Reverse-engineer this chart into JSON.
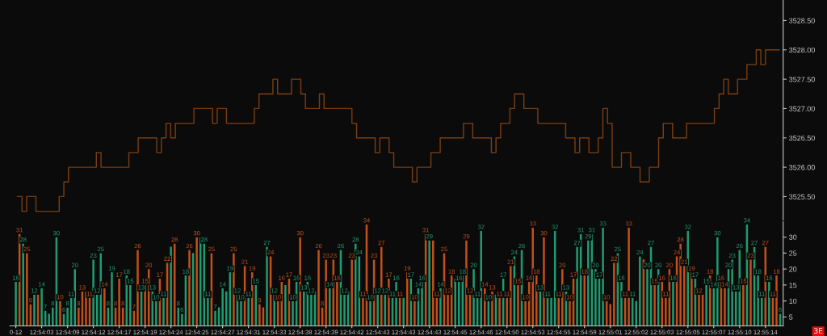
{
  "chart_data": [
    {
      "type": "step",
      "tick_labels": "y",
      "marker": "none",
      "line_style": "solid",
      "categories": [
        null,
        null,
        null,
        null,
        null,
        null,
        null,
        null,
        null,
        null,
        null,
        null,
        null,
        null,
        null,
        null,
        null,
        null,
        null,
        null,
        null,
        null,
        null,
        null,
        null,
        null,
        null,
        null,
        null,
        null,
        null,
        null,
        null,
        null,
        null,
        null,
        null,
        null,
        null,
        null,
        null,
        null,
        null,
        null,
        null,
        null,
        null,
        null,
        null,
        null,
        null,
        null,
        null,
        null,
        null,
        null,
        null,
        null,
        null,
        null,
        null,
        null,
        null,
        null,
        null,
        null,
        null,
        null,
        null,
        null,
        null,
        null,
        null,
        null,
        null,
        null,
        null,
        null,
        null,
        null,
        null,
        null,
        null,
        null,
        null,
        null,
        null,
        null,
        null,
        null,
        null,
        null,
        null,
        null,
        null,
        null,
        null,
        null,
        null,
        null,
        null,
        null,
        null,
        null,
        null,
        null,
        null,
        null,
        null,
        null,
        null,
        null,
        null,
        null,
        null,
        null,
        null,
        null,
        null,
        null,
        null,
        null,
        null,
        null,
        null,
        null,
        null,
        null,
        null,
        null,
        null,
        null,
        null,
        null,
        null,
        null,
        null,
        null,
        null,
        null,
        null,
        null,
        null,
        null,
        null,
        null,
        null,
        null,
        null,
        null,
        null,
        null,
        null,
        null,
        null,
        null,
        null,
        null,
        null,
        null,
        null,
        null,
        null,
        null,
        null
      ],
      "series": [
        {
          "color": "#7a3f12",
          "values": [
            3525.5,
            3525.25,
            3525.5,
            3525.5,
            3525.25,
            3525.25,
            3525.25,
            3525.25,
            3525.25,
            3525.5,
            3525.75,
            3526.0,
            3526.0,
            3526.0,
            3526.0,
            3526.0,
            3526.0,
            3526.25,
            3526.0,
            3526.0,
            3526.0,
            3526.0,
            3526.0,
            3526.0,
            3526.25,
            3526.25,
            3526.5,
            3526.5,
            3526.5,
            3526.5,
            3526.25,
            3526.5,
            3526.75,
            3526.5,
            3526.75,
            3526.75,
            3526.75,
            3526.75,
            3527.0,
            3527.0,
            3527.0,
            3527.0,
            3526.75,
            3527.0,
            3527.0,
            3526.75,
            3526.75,
            3526.75,
            3526.75,
            3526.75,
            3526.75,
            3527.0,
            3527.25,
            3527.25,
            3527.25,
            3527.5,
            3527.25,
            3527.25,
            3527.25,
            3527.5,
            3527.5,
            3527.25,
            3527.0,
            3527.0,
            3527.0,
            3527.25,
            3527.0,
            3527.0,
            3527.0,
            3527.0,
            3527.0,
            3527.0,
            3526.75,
            3526.5,
            3526.5,
            3526.5,
            3526.5,
            3526.25,
            3526.5,
            3526.5,
            3526.25,
            3526.0,
            3526.0,
            3526.0,
            3526.0,
            3525.75,
            3526.0,
            3526.0,
            3526.0,
            3526.25,
            3526.25,
            3526.5,
            3526.5,
            3526.5,
            3526.5,
            3526.5,
            3526.75,
            3526.75,
            3526.5,
            3526.5,
            3526.5,
            3526.5,
            3526.25,
            3526.5,
            3526.75,
            3526.75,
            3527.0,
            3527.25,
            3527.25,
            3527.0,
            3527.0,
            3527.0,
            3526.75,
            3526.75,
            3526.75,
            3526.75,
            3526.75,
            3526.75,
            3526.5,
            3526.5,
            3526.25,
            3526.5,
            3526.5,
            3526.25,
            3526.25,
            3526.5,
            3527.0,
            3526.75,
            3526.0,
            3526.0,
            3526.25,
            3526.25,
            3526.0,
            3526.0,
            3525.75,
            3525.75,
            3526.0,
            3526.0,
            3526.5,
            3526.75,
            3526.75,
            3526.5,
            3526.5,
            3526.5,
            3526.75,
            3526.75,
            3526.75,
            3526.75,
            3526.75,
            3526.75,
            3527.0,
            3527.25,
            3527.5,
            3527.25,
            3527.25,
            3527.5,
            3527.5,
            3527.75,
            3527.75,
            3528.0,
            3527.75,
            3528.0,
            3528.0,
            3528.0,
            3528.0
          ]
        }
      ],
      "ylim": [
        3525.1,
        3528.85
      ],
      "yticks": [
        {
          "value": 3525.5,
          "label": "3525.50"
        },
        {
          "value": 3526.0,
          "label": "3526.00"
        },
        {
          "value": 3526.5,
          "label": "3526.50"
        },
        {
          "value": 3527.0,
          "label": "3527.00"
        },
        {
          "value": 3527.5,
          "label": "3527.50"
        },
        {
          "value": 3528.0,
          "label": "3528.00"
        },
        {
          "value": 3528.5,
          "label": "3528.50"
        }
      ]
    },
    {
      "type": "bar",
      "annotations": [
        "3E"
      ],
      "value_labels": [
        "16",
        "31",
        "28",
        "25",
        "9",
        "12",
        null,
        "14",
        "7",
        null,
        "8",
        "30",
        "10",
        "6",
        "8",
        "11",
        "20",
        "8",
        "13",
        null,
        "11",
        "23",
        "12",
        "25",
        "14",
        "8",
        "19",
        "8",
        "17",
        "8",
        "18",
        "15",
        "7",
        "26",
        "13",
        "15",
        "20",
        "13",
        "10",
        "17",
        "11",
        "22",
        null,
        "28",
        "8",
        "6",
        "18",
        "26",
        null,
        "30",
        null,
        "28",
        "11",
        "25",
        "7",
        null,
        "14",
        null,
        "19",
        "25",
        "12",
        "10",
        "21",
        "11",
        "19",
        "15",
        "9",
        null,
        "27",
        "24",
        "12",
        "10",
        "16",
        null,
        "17",
        "10",
        "16",
        "30",
        "13",
        "16",
        "12",
        null,
        "26",
        "8",
        "23",
        "14",
        "23",
        "16",
        "26",
        "12",
        null,
        "23",
        "28",
        "24",
        "11",
        "34",
        "10",
        "23",
        "12",
        "27",
        "12",
        "17",
        "11",
        "16",
        "11",
        null,
        "19",
        "17",
        "10",
        "14",
        "16",
        "31",
        "29",
        null,
        "11",
        "14",
        "25",
        "12",
        "18",
        null,
        "16",
        "18",
        "29",
        "12",
        "20",
        "11",
        "32",
        "14",
        "10",
        "13",
        null,
        "11",
        "17",
        "11",
        "21",
        "24",
        "15",
        "26",
        "10",
        "16",
        "33",
        "18",
        "13",
        "30",
        "11",
        null,
        "32",
        "11",
        "20",
        "13",
        "10",
        "17",
        "27",
        "31",
        "18",
        "29",
        "31",
        "20",
        "17",
        "33",
        "10",
        null,
        "22",
        "25",
        "16",
        "11",
        "33",
        "11",
        null,
        "24",
        null,
        "20",
        "27",
        "15",
        "20",
        "16",
        "11",
        "20",
        "16",
        "24",
        "28",
        "21",
        "32",
        "19",
        "17",
        "12",
        null,
        "15",
        "18",
        "14",
        "30",
        "16",
        "14",
        "20",
        "23",
        "13",
        "26",
        "15",
        "34",
        "23",
        "27",
        "18",
        "11",
        "27",
        "16",
        "11",
        "18",
        "6"
      ],
      "categories": [
        "0-12",
        null,
        null,
        null,
        null,
        null,
        null,
        "12:54:03",
        null,
        null,
        null,
        null,
        null,
        null,
        "12:54:09",
        null,
        null,
        null,
        null,
        null,
        null,
        "12:54:12",
        null,
        null,
        null,
        null,
        null,
        null,
        "12:54:17",
        null,
        null,
        null,
        null,
        null,
        null,
        "12:54:19",
        null,
        null,
        null,
        null,
        null,
        null,
        "12:54:24",
        null,
        null,
        null,
        null,
        null,
        null,
        "12:54:25",
        null,
        null,
        null,
        null,
        null,
        null,
        "12:54:27",
        null,
        null,
        null,
        null,
        null,
        null,
        "12:54:31",
        null,
        null,
        null,
        null,
        null,
        null,
        "12:54:33",
        null,
        null,
        null,
        null,
        null,
        null,
        "12:54:38",
        null,
        null,
        null,
        null,
        null,
        null,
        "12:54:39",
        null,
        null,
        null,
        null,
        null,
        null,
        "12:54:42",
        null,
        null,
        null,
        null,
        null,
        null,
        "12:54:43",
        null,
        null,
        null,
        null,
        null,
        null,
        "12:54:43",
        null,
        null,
        null,
        null,
        null,
        null,
        "12:54:43",
        null,
        null,
        null,
        null,
        null,
        null,
        "12:54:45",
        null,
        null,
        null,
        null,
        null,
        null,
        "12:54:46",
        null,
        null,
        null,
        null,
        null,
        null,
        "12:54:50",
        null,
        null,
        null,
        null,
        null,
        null,
        "12:54:53",
        null,
        null,
        null,
        null,
        null,
        null,
        "12:54:55",
        null,
        null,
        null,
        null,
        null,
        null,
        "12:54:59",
        null,
        null,
        null,
        null,
        null,
        null,
        "12:55:01",
        null,
        null,
        null,
        null,
        null,
        null,
        "12:55:02",
        null,
        null,
        null,
        null,
        null,
        null,
        "12:55:03",
        null,
        null,
        null,
        null,
        null,
        null,
        "12:55:05",
        null,
        null,
        null,
        null,
        null,
        null,
        "12:55:07",
        null,
        null,
        null,
        null,
        null,
        null,
        "12:55:10",
        null,
        null,
        null,
        null,
        null,
        null,
        "12:55:14",
        null,
        null,
        null,
        null
      ],
      "values": [
        16,
        31,
        28,
        25,
        9,
        12,
        12,
        14,
        7,
        6,
        8,
        30,
        10,
        6,
        8,
        11,
        20,
        8,
        13,
        13,
        11,
        23,
        12,
        25,
        14,
        8,
        19,
        8,
        17,
        8,
        18,
        15,
        7,
        26,
        13,
        15,
        20,
        13,
        10,
        17,
        11,
        22,
        27,
        28,
        8,
        6,
        18,
        26,
        25,
        30,
        30,
        28,
        11,
        25,
        7,
        8,
        14,
        13,
        19,
        25,
        12,
        10,
        21,
        11,
        19,
        15,
        9,
        8,
        27,
        24,
        12,
        10,
        16,
        15,
        17,
        10,
        16,
        30,
        13,
        16,
        12,
        13,
        26,
        8,
        23,
        14,
        23,
        16,
        26,
        12,
        13,
        23,
        28,
        24,
        11,
        34,
        10,
        23,
        12,
        27,
        12,
        17,
        11,
        16,
        11,
        11,
        19,
        17,
        10,
        14,
        16,
        31,
        29,
        29,
        11,
        14,
        25,
        12,
        18,
        17,
        16,
        18,
        29,
        12,
        20,
        11,
        32,
        14,
        10,
        13,
        12,
        11,
        17,
        11,
        21,
        24,
        15,
        26,
        10,
        16,
        33,
        18,
        13,
        30,
        11,
        11,
        32,
        11,
        20,
        13,
        10,
        17,
        27,
        31,
        18,
        29,
        31,
        20,
        17,
        33,
        10,
        9,
        22,
        25,
        16,
        11,
        33,
        11,
        10,
        24,
        23,
        20,
        27,
        15,
        20,
        16,
        11,
        20,
        16,
        24,
        28,
        21,
        32,
        19,
        17,
        12,
        12,
        15,
        18,
        14,
        30,
        16,
        14,
        20,
        23,
        13,
        26,
        15,
        34,
        23,
        27,
        18,
        11,
        27,
        16,
        11,
        18,
        6
      ],
      "colors": [
        "#1f9b70",
        "#c2501a",
        "#1f9b70",
        "#c2501a",
        "#c2501a",
        "#1f9b70",
        "#c2501a",
        "#1f9b70",
        "#1f9b70",
        "#1f9b70",
        "#1f9b70",
        "#1f9b70",
        "#c2501a",
        "#1f9b70",
        "#1f9b70",
        "#1f9b70",
        "#1f9b70",
        "#c2501a",
        "#c2501a",
        "#c2501a",
        "#c2501a",
        "#1f9b70",
        "#1f9b70",
        "#1f9b70",
        "#c2501a",
        "#1f9b70",
        "#1f9b70",
        "#c2501a",
        "#c2501a",
        "#c2501a",
        "#1f9b70",
        "#1f9b70",
        "#c2501a",
        "#c2501a",
        "#1f9b70",
        "#c2501a",
        "#c2501a",
        "#1f9b70",
        "#1f9b70",
        "#c2501a",
        "#1f9b70",
        "#c2501a",
        "#1f9b70",
        "#c2501a",
        "#1f9b70",
        "#1f9b70",
        "#1f9b70",
        "#c2501a",
        "#1f9b70",
        "#c2501a",
        "#1f9b70",
        "#1f9b70",
        "#1f9b70",
        "#c2501a",
        "#1f9b70",
        "#1f9b70",
        "#1f9b70",
        "#1f9b70",
        "#1f9b70",
        "#c2501a",
        "#1f9b70",
        "#1f9b70",
        "#c2501a",
        "#1f9b70",
        "#c2501a",
        "#1f9b70",
        "#c2501a",
        "#c2501a",
        "#1f9b70",
        "#c2501a",
        "#1f9b70",
        "#c2501a",
        "#c2501a",
        "#1f9b70",
        "#c2501a",
        "#1f9b70",
        "#1f9b70",
        "#c2501a",
        "#1f9b70",
        "#1f9b70",
        "#1f9b70",
        "#1f9b70",
        "#c2501a",
        "#c2501a",
        "#c2501a",
        "#1f9b70",
        "#c2501a",
        "#c2501a",
        "#1f9b70",
        "#1f9b70",
        "#1f9b70",
        "#c2501a",
        "#1f9b70",
        "#1f9b70",
        "#c2501a",
        "#c2501a",
        "#1f9b70",
        "#c2501a",
        "#1f9b70",
        "#c2501a",
        "#1f9b70",
        "#c2501a",
        "#1f9b70",
        "#1f9b70",
        "#c2501a",
        "#1f9b70",
        "#c2501a",
        "#1f9b70",
        "#c2501a",
        "#1f9b70",
        "#1f9b70",
        "#c2501a",
        "#1f9b70",
        "#c2501a",
        "#c2501a",
        "#1f9b70",
        "#c2501a",
        "#c2501a",
        "#c2501a",
        "#1f9b70",
        "#1f9b70",
        "#1f9b70",
        "#c2501a",
        "#c2501a",
        "#1f9b70",
        "#1f9b70",
        "#1f9b70",
        "#c2501a",
        "#1f9b70",
        "#c2501a",
        "#1f9b70",
        "#c2501a",
        "#1f9b70",
        "#c2501a",
        "#c2501a",
        "#1f9b70",
        "#c2501a",
        "#1f9b70",
        "#c2501a",
        "#c2501a",
        "#c2501a",
        "#c2501a",
        "#1f9b70",
        "#c2501a",
        "#1f9b70",
        "#1f9b70",
        "#1f9b70",
        "#c2501a",
        "#c2501a",
        "#1f9b70",
        "#c2501a",
        "#c2501a",
        "#1f9b70",
        "#1f9b70",
        "#c2501a",
        "#1f9b70",
        "#1f9b70",
        "#1f9b70",
        "#1f9b70",
        "#1f9b70",
        "#c2501a",
        "#c2501a",
        "#c2501a",
        "#1f9b70",
        "#1f9b70",
        "#c2501a",
        "#c2501a",
        "#1f9b70",
        "#1f9b70",
        "#1f9b70",
        "#c2501a",
        "#1f9b70",
        "#1f9b70",
        "#c2501a",
        "#1f9b70",
        "#c2501a",
        "#c2501a",
        "#c2501a",
        "#1f9b70",
        "#c2501a",
        "#c2501a",
        "#c2501a",
        "#1f9b70",
        "#c2501a",
        "#1f9b70",
        "#c2501a",
        "#c2501a",
        "#1f9b70",
        "#c2501a",
        "#1f9b70",
        "#1f9b70",
        "#c2501a",
        "#c2501a",
        "#1f9b70",
        "#1f9b70",
        "#1f9b70",
        "#1f9b70",
        "#c2501a",
        "#1f9b70",
        "#c2501a",
        "#1f9b70",
        "#1f9b70",
        "#1f9b70",
        "#c2501a",
        "#1f9b70",
        "#c2501a",
        "#c2501a",
        "#1f9b70"
      ],
      "ylim": [
        2.2,
        34.8
      ],
      "yticks": [
        5,
        10,
        15,
        20,
        25,
        30
      ]
    }
  ]
}
